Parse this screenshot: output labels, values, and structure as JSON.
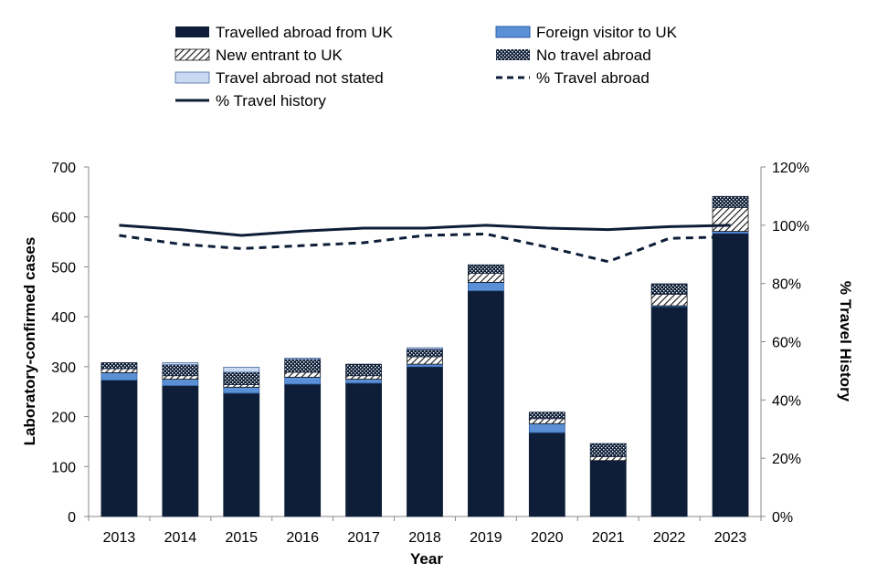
{
  "chart_data": {
    "type": "bar",
    "stacked": true,
    "categories": [
      "2013",
      "2014",
      "2015",
      "2016",
      "2017",
      "2018",
      "2019",
      "2020",
      "2021",
      "2022",
      "2023"
    ],
    "xlabel": "Year",
    "ylabel": "Laboratory-confirmed cases",
    "y2label": "% Travel History",
    "ylim": [
      0,
      700
    ],
    "yticks": [
      "0",
      "100",
      "200",
      "300",
      "400",
      "500",
      "600",
      "700"
    ],
    "y2lim": [
      0,
      120
    ],
    "y2ticks": [
      "0%",
      "20%",
      "40%",
      "60%",
      "80%",
      "100%",
      "120%"
    ],
    "series": [
      {
        "name": "Travelled abroad from UK",
        "kind": "bar",
        "pattern": "solid-dark",
        "values": [
          273,
          262,
          247,
          265,
          267,
          300,
          452,
          168,
          112,
          420,
          567
        ]
      },
      {
        "name": "Foreign visitor to UK",
        "kind": "bar",
        "pattern": "solid-blue",
        "values": [
          15,
          13,
          12,
          14,
          8,
          5,
          17,
          18,
          0,
          2,
          4
        ]
      },
      {
        "name": "New entrant to UK",
        "kind": "bar",
        "pattern": "diagonal",
        "values": [
          8,
          7,
          5,
          10,
          7,
          15,
          18,
          10,
          8,
          23,
          48
        ]
      },
      {
        "name": "No travel abroad",
        "kind": "bar",
        "pattern": "dots",
        "values": [
          12,
          22,
          25,
          26,
          23,
          15,
          17,
          13,
          26,
          21,
          22
        ]
      },
      {
        "name": "Travel abroad not stated",
        "kind": "bar",
        "pattern": "light-blue",
        "values": [
          0,
          4,
          10,
          2,
          0,
          3,
          0,
          0,
          0,
          0,
          0
        ]
      },
      {
        "name": "% Travel abroad",
        "kind": "line",
        "style": "dashed",
        "axis": "secondary",
        "values": [
          96.5,
          93.5,
          92,
          93,
          94,
          96.5,
          97,
          92.5,
          87.5,
          95.5,
          96
        ]
      },
      {
        "name": "% Travel history",
        "kind": "line",
        "style": "solid",
        "axis": "secondary",
        "values": [
          100,
          98.5,
          96.5,
          98,
          99,
          99,
          100,
          99,
          98.5,
          99.5,
          100
        ]
      }
    ],
    "legend_position": "top",
    "colors": {
      "dark": "#0e1e38",
      "blue": "#5b8fd6",
      "blue_stroke": "#2e5fa3",
      "light_blue": "#c9d9f2",
      "line": "#0e1e38",
      "axis": "#888888"
    }
  }
}
